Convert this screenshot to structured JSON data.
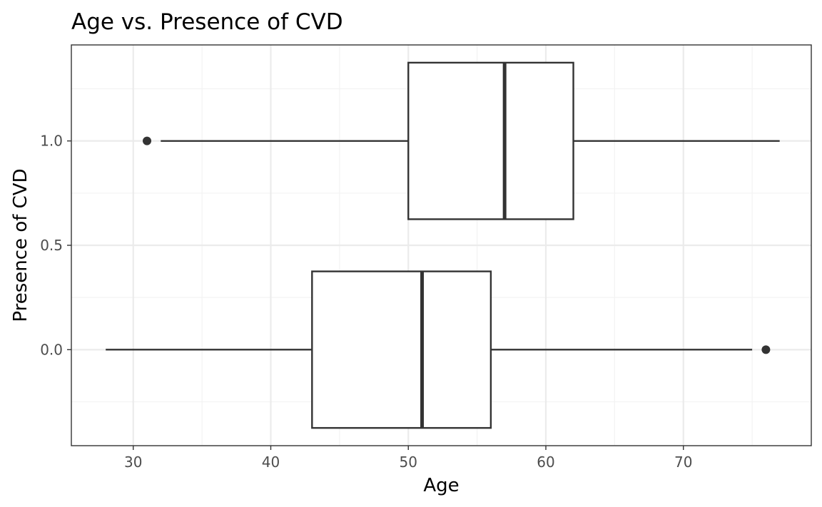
{
  "chart_data": {
    "type": "boxplot",
    "orientation": "horizontal",
    "title": "Age vs. Presence of CVD",
    "xlabel": "Age",
    "ylabel": "Presence of CVD",
    "xlim": [
      25.5,
      79.3
    ],
    "ylim": [
      -0.46,
      1.46
    ],
    "x_ticks": [
      30,
      40,
      50,
      60,
      70
    ],
    "x_tick_labels": [
      "30",
      "40",
      "50",
      "60",
      "70"
    ],
    "y_ticks": [
      0.0,
      0.5,
      1.0
    ],
    "y_tick_labels": [
      "0.0",
      "0.5",
      "1.0"
    ],
    "grid": true,
    "theme": "bw",
    "box_half_height": 0.375,
    "boxes": [
      {
        "group": "0.0",
        "y": 0.0,
        "whisker_low": 28,
        "q1": 43,
        "median": 51,
        "q3": 56,
        "whisker_high": 75,
        "outliers": [
          76
        ]
      },
      {
        "group": "1.0",
        "y": 1.0,
        "whisker_low": 32,
        "q1": 50,
        "median": 57,
        "q3": 62,
        "whisker_high": 77,
        "outliers": [
          31
        ]
      }
    ],
    "colors": {
      "box_stroke": "#333333",
      "box_fill": "#ffffff",
      "panel_border": "#333333",
      "grid_major": "#ebebeb",
      "grid_minor": "#f3f3f3",
      "tick_label": "#4d4d4d"
    }
  }
}
